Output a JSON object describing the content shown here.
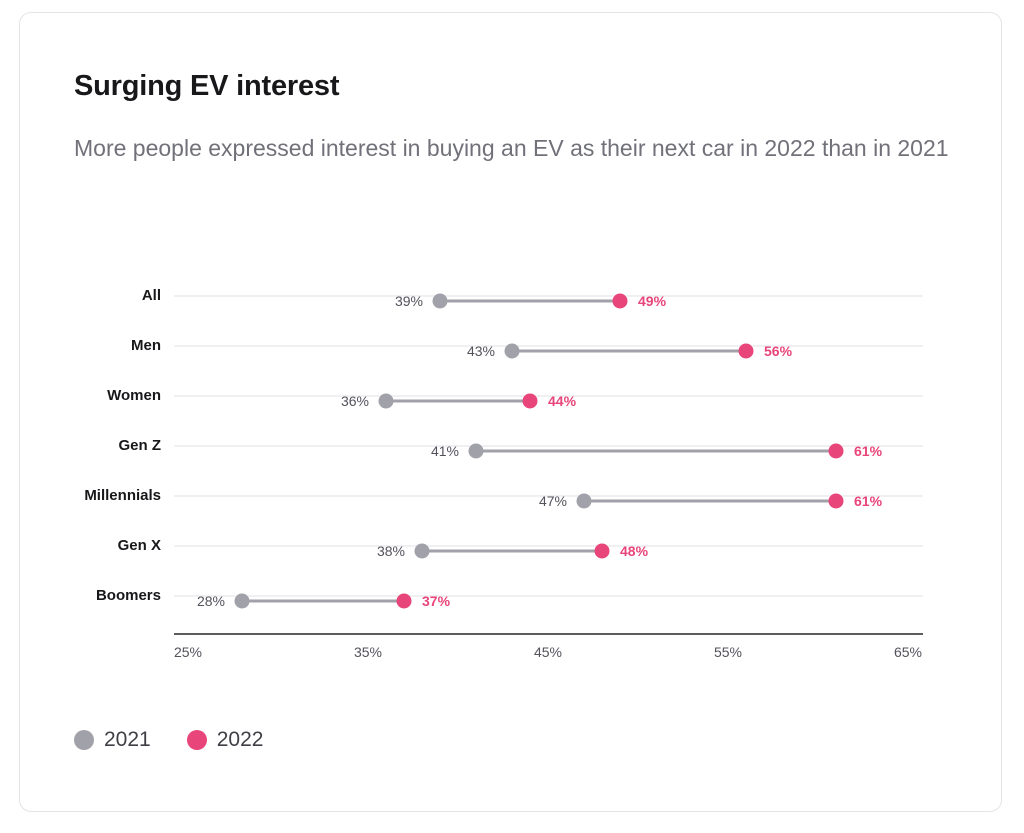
{
  "title": "Surging EV interest",
  "subtitle": "More people expressed interest in buying an EV as their next car in 2022 than in 2021",
  "colors": {
    "series_2021": "#a1a1aa",
    "series_2022": "#e8457a",
    "connector": "#a1a1aa",
    "gridline": "#ececef",
    "axis": "#27272a",
    "category_text": "#18181b",
    "tick_text": "#52525b",
    "label_2021_text": "#52525b"
  },
  "chart_data": {
    "type": "dumbbell",
    "categories": [
      "All",
      "Men",
      "Women",
      "Gen Z",
      "Millennials",
      "Gen X",
      "Boomers"
    ],
    "series": [
      {
        "name": "2021",
        "values": [
          39,
          43,
          36,
          41,
          47,
          38,
          28
        ],
        "labels": [
          "39%",
          "43%",
          "36%",
          "41%",
          "47%",
          "38%",
          "28%"
        ]
      },
      {
        "name": "2022",
        "values": [
          49,
          56,
          44,
          61,
          61,
          48,
          37
        ],
        "labels": [
          "49%",
          "56%",
          "44%",
          "61%",
          "61%",
          "48%",
          "37%"
        ]
      }
    ],
    "x_ticks": [
      25,
      35,
      45,
      55,
      65
    ],
    "x_tick_labels": [
      "25%",
      "35%",
      "45%",
      "55%",
      "65%"
    ],
    "xlim": [
      25,
      65
    ],
    "grid": "horizontal",
    "legend_position": "bottom-left"
  },
  "legend": [
    {
      "label": "2021"
    },
    {
      "label": "2022"
    }
  ]
}
